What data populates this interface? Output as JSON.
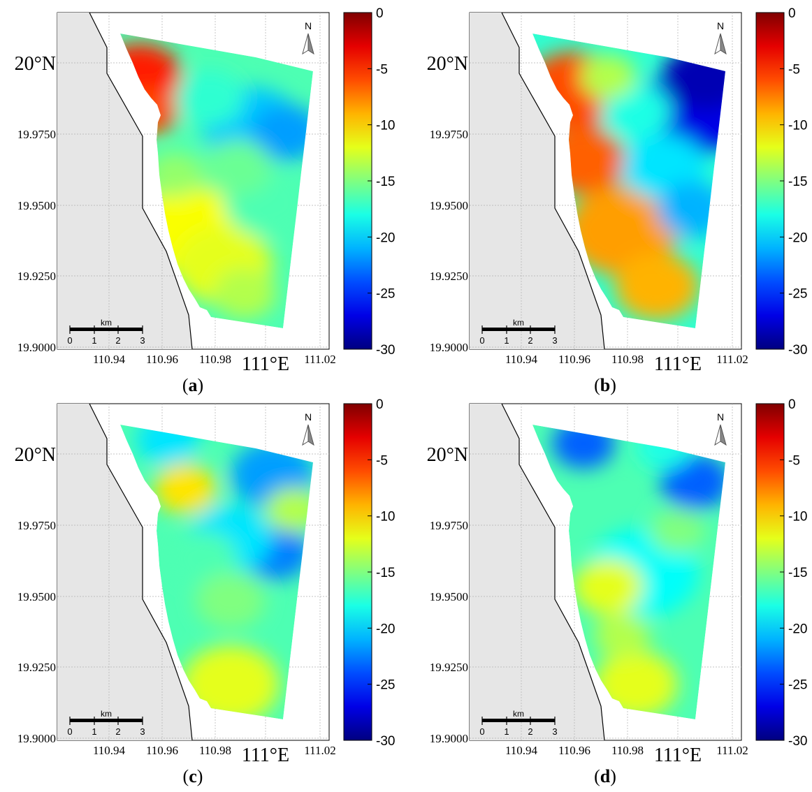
{
  "panels": [
    {
      "id": "a",
      "caption": "a"
    },
    {
      "id": "b",
      "caption": "b"
    },
    {
      "id": "c",
      "caption": "c"
    },
    {
      "id": "d",
      "caption": "d"
    }
  ],
  "axes": {
    "y_ticks": [
      "20°N",
      "19.9750",
      "19.9500",
      "19.9250",
      "19.9000"
    ],
    "x_ticks": [
      "110.94",
      "110.96",
      "110.98",
      "111°E",
      "111.02"
    ]
  },
  "colorbar": {
    "ticks": [
      "0",
      "-5",
      "-10",
      "-15",
      "-20",
      "-25",
      "-30"
    ],
    "range": [
      -30,
      0
    ]
  },
  "north_arrow": {
    "label": "N",
    "icon": "north-arrow-icon"
  },
  "scalebar": {
    "unit": "km",
    "ticks": [
      "0",
      "1",
      "2",
      "3"
    ]
  },
  "colors": {
    "land": "#e6e6e6",
    "coast": "#000000",
    "grid": "#b0b0b0"
  }
}
